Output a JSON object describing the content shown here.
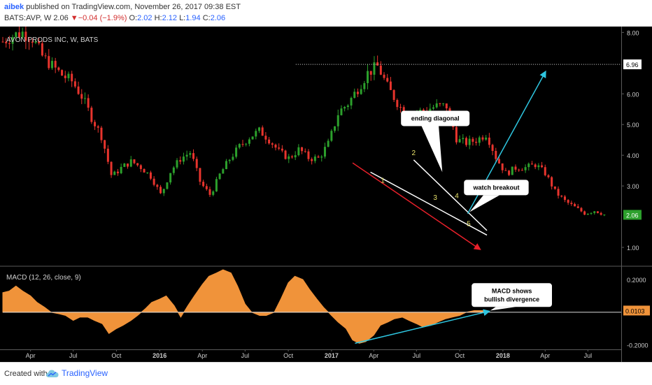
{
  "header": {
    "username": "aibek",
    "published_text": "published on TradingView.com, November 26, 2017 09:38 EST",
    "symbol_prefix": "BATS:AVP, W",
    "last_price": "2.06",
    "change_arrow": "▼",
    "change_text": "−0.04 (−1.9%)",
    "ohlc_o_label": "O:",
    "ohlc_o": "2.02",
    "ohlc_h_label": "H:",
    "ohlc_h": "2.12",
    "ohlc_l_label": "L:",
    "ohlc_l": "1.94",
    "ohlc_c_label": "C:",
    "ohlc_c": "2.06"
  },
  "footer": {
    "created_with": "Created with",
    "brand": "TradingView"
  },
  "colors": {
    "up": "#2ca02c",
    "down": "#e8342d",
    "macd_fill": "#f0933a",
    "trend_red": "#e8202a",
    "arrow_cyan": "#2ec6e0",
    "wedge": "#ffffff",
    "price_badge": "#2ca02c",
    "macd_badge": "#f0933a"
  },
  "chart_data": [
    {
      "type": "candlestick",
      "title": "AVON PRODS INC, W, BATS",
      "y_axis_ticks": [
        "8.00",
        "6.96",
        "6.00",
        "5.00",
        "4.00",
        "3.00",
        "2.06",
        "1.00"
      ],
      "ylim": [
        0.5,
        8.1
      ],
      "x_axis_ticks": [
        "Apr",
        "Jul",
        "Oct",
        "2016",
        "Apr",
        "Jul",
        "Oct",
        "2017",
        "Apr",
        "Jul",
        "Oct",
        "2018",
        "Apr",
        "Jul"
      ],
      "x_tick_dates": [
        "2015-04-01",
        "2015-07-01",
        "2015-10-01",
        "2016-01-01",
        "2016-04-01",
        "2016-07-01",
        "2016-10-01",
        "2017-01-01",
        "2017-04-01",
        "2017-07-01",
        "2017-10-01",
        "2018-01-01",
        "2018-04-01",
        "2018-07-01"
      ],
      "xlim": [
        "2015-02-01",
        "2018-09-10"
      ],
      "last_price": 2.06,
      "resistance_level": 6.96,
      "resistance_from": "2016-10-17",
      "closes": [
        [
          "2015-02-01",
          7.7
        ],
        [
          "2015-02-23",
          7.9
        ],
        [
          "2015-03-16",
          8.0
        ],
        [
          "2015-04-06",
          7.8
        ],
        [
          "2015-04-27",
          7.2
        ],
        [
          "2015-05-18",
          6.9
        ],
        [
          "2015-06-08",
          6.6
        ],
        [
          "2015-06-29",
          6.4
        ],
        [
          "2015-07-20",
          5.9
        ],
        [
          "2015-08-10",
          5.2
        ],
        [
          "2015-08-31",
          4.6
        ],
        [
          "2015-09-21",
          3.3
        ],
        [
          "2015-10-12",
          3.6
        ],
        [
          "2015-11-02",
          3.8
        ],
        [
          "2015-11-23",
          3.6
        ],
        [
          "2015-12-14",
          3.3
        ],
        [
          "2016-01-04",
          2.7
        ],
        [
          "2016-01-25",
          3.5
        ],
        [
          "2016-02-15",
          3.9
        ],
        [
          "2016-03-07",
          4.1
        ],
        [
          "2016-03-28",
          3.1
        ],
        [
          "2016-04-18",
          2.7
        ],
        [
          "2016-05-09",
          3.4
        ],
        [
          "2016-05-30",
          3.9
        ],
        [
          "2016-06-20",
          4.3
        ],
        [
          "2016-07-11",
          4.6
        ],
        [
          "2016-08-01",
          4.8
        ],
        [
          "2016-08-22",
          4.5
        ],
        [
          "2016-09-12",
          4.1
        ],
        [
          "2016-10-03",
          3.9
        ],
        [
          "2016-10-24",
          4.2
        ],
        [
          "2016-11-14",
          3.9
        ],
        [
          "2016-12-05",
          3.9
        ],
        [
          "2016-12-26",
          4.4
        ],
        [
          "2017-01-16",
          5.4
        ],
        [
          "2017-02-06",
          5.7
        ],
        [
          "2017-02-27",
          6.2
        ],
        [
          "2017-03-20",
          6.7
        ],
        [
          "2017-04-10",
          6.9
        ],
        [
          "2017-05-01",
          6.2
        ],
        [
          "2017-05-22",
          5.7
        ],
        [
          "2017-06-12",
          5.2
        ],
        [
          "2017-07-03",
          5.4
        ],
        [
          "2017-07-24",
          5.5
        ],
        [
          "2017-08-14",
          5.6
        ],
        [
          "2017-09-04",
          5.6
        ],
        [
          "2017-09-25",
          4.5
        ],
        [
          "2017-10-16",
          4.4
        ],
        [
          "2017-11-06",
          4.5
        ],
        [
          "2017-11-27",
          4.7
        ],
        [
          "2017-12-18",
          3.9
        ],
        [
          "2018-01-08",
          3.4
        ],
        [
          "2018-01-29",
          3.6
        ],
        [
          "2018-02-19",
          3.6
        ],
        [
          "2018-03-12",
          3.7
        ],
        [
          "2018-04-02",
          3.4
        ],
        [
          "2018-04-23",
          2.8
        ],
        [
          "2018-05-14",
          2.5
        ],
        [
          "2018-06-04",
          2.3
        ],
        [
          "2018-06-25",
          2.1
        ],
        [
          "2018-07-16",
          2.2
        ],
        [
          "2018-08-06",
          2.06
        ]
      ],
      "annotations": [
        {
          "text": "ending diagonal",
          "date": "2017-08-10",
          "price": 5.2
        },
        {
          "text": "watch breakout",
          "date": "2017-12-18",
          "price": 2.95
        },
        {
          "text": "1",
          "date": "2017-04-20",
          "price": 3.1
        },
        {
          "text": "2",
          "date": "2017-06-25",
          "price": 4.0
        },
        {
          "text": "3",
          "date": "2017-08-10",
          "price": 2.55
        },
        {
          "text": "4",
          "date": "2017-09-25",
          "price": 2.6
        },
        {
          "text": "5",
          "date": "2017-10-20",
          "price": 1.7
        }
      ],
      "wedge_lines": [
        {
          "from": [
            "2017-03-25",
            3.45
          ],
          "to": [
            "2017-11-28",
            1.4
          ]
        },
        {
          "from": [
            "2017-06-25",
            3.85
          ],
          "to": [
            "2017-11-28",
            1.55
          ]
        }
      ],
      "red_trendline": {
        "from": [
          "2017-02-15",
          3.75
        ],
        "to": [
          "2017-11-12",
          0.95
        ]
      },
      "cyan_arrow": {
        "from": [
          "2017-10-18",
          2.1
        ],
        "to": [
          "2018-04-01",
          6.7
        ]
      }
    },
    {
      "type": "area",
      "title": "MACD (12, 26, close, 9)",
      "y_axis_ticks": [
        "0.2000",
        "0.0103",
        "-0.2000"
      ],
      "ylim": [
        -0.21,
        0.26
      ],
      "last_value": 0.0103,
      "values": [
        [
          "2015-02-01",
          0.12
        ],
        [
          "2015-02-15",
          0.13
        ],
        [
          "2015-03-01",
          0.16
        ],
        [
          "2015-03-15",
          0.13
        ],
        [
          "2015-04-01",
          0.1
        ],
        [
          "2015-04-15",
          0.06
        ],
        [
          "2015-05-01",
          0.03
        ],
        [
          "2015-05-15",
          0.0
        ],
        [
          "2015-06-01",
          -0.01
        ],
        [
          "2015-06-15",
          -0.02
        ],
        [
          "2015-07-01",
          -0.05
        ],
        [
          "2015-07-15",
          -0.03
        ],
        [
          "2015-08-01",
          -0.03
        ],
        [
          "2015-08-15",
          -0.05
        ],
        [
          "2015-09-01",
          -0.07
        ],
        [
          "2015-09-15",
          -0.13
        ],
        [
          "2015-10-01",
          -0.1
        ],
        [
          "2015-10-15",
          -0.08
        ],
        [
          "2015-11-01",
          -0.05
        ],
        [
          "2015-11-15",
          -0.02
        ],
        [
          "2015-12-01",
          0.02
        ],
        [
          "2015-12-15",
          0.06
        ],
        [
          "2016-01-01",
          0.08
        ],
        [
          "2016-01-15",
          0.1
        ],
        [
          "2016-02-01",
          0.04
        ],
        [
          "2016-02-15",
          -0.03
        ],
        [
          "2016-03-01",
          0.04
        ],
        [
          "2016-03-15",
          0.1
        ],
        [
          "2016-04-01",
          0.17
        ],
        [
          "2016-04-15",
          0.22
        ],
        [
          "2016-05-01",
          0.24
        ],
        [
          "2016-05-15",
          0.26
        ],
        [
          "2016-06-01",
          0.24
        ],
        [
          "2016-06-15",
          0.16
        ],
        [
          "2016-07-01",
          0.05
        ],
        [
          "2016-07-15",
          0.0
        ],
        [
          "2016-08-01",
          -0.02
        ],
        [
          "2016-08-15",
          -0.02
        ],
        [
          "2016-09-01",
          0.0
        ],
        [
          "2016-09-15",
          0.08
        ],
        [
          "2016-10-01",
          0.18
        ],
        [
          "2016-10-15",
          0.22
        ],
        [
          "2016-11-01",
          0.2
        ],
        [
          "2016-11-15",
          0.14
        ],
        [
          "2016-12-01",
          0.08
        ],
        [
          "2016-12-15",
          0.03
        ],
        [
          "2017-01-01",
          -0.02
        ],
        [
          "2017-01-15",
          -0.06
        ],
        [
          "2017-02-01",
          -0.1
        ],
        [
          "2017-02-15",
          -0.17
        ],
        [
          "2017-03-01",
          -0.19
        ],
        [
          "2017-03-15",
          -0.18
        ],
        [
          "2017-04-01",
          -0.14
        ],
        [
          "2017-04-15",
          -0.08
        ],
        [
          "2017-05-01",
          -0.06
        ],
        [
          "2017-05-15",
          -0.04
        ],
        [
          "2017-06-01",
          -0.03
        ],
        [
          "2017-06-15",
          -0.05
        ],
        [
          "2017-07-01",
          -0.07
        ],
        [
          "2017-07-15",
          -0.09
        ],
        [
          "2017-08-01",
          -0.08
        ],
        [
          "2017-08-15",
          -0.06
        ],
        [
          "2017-09-01",
          -0.04
        ],
        [
          "2017-09-15",
          -0.03
        ],
        [
          "2017-10-01",
          -0.02
        ],
        [
          "2017-10-15",
          0.0
        ],
        [
          "2017-11-01",
          0.01
        ],
        [
          "2017-11-20",
          0.0103
        ]
      ],
      "annotations": [
        {
          "text": "MACD shows",
          "date": "2018-01-20",
          "value": 0.12
        },
        {
          "text": "bullish divergence",
          "date": "2018-01-20",
          "value": 0.09
        }
      ],
      "cyan_arrow": {
        "from": [
          "2017-02-20",
          -0.19
        ],
        "to": [
          "2017-12-01",
          0.005
        ]
      }
    }
  ]
}
